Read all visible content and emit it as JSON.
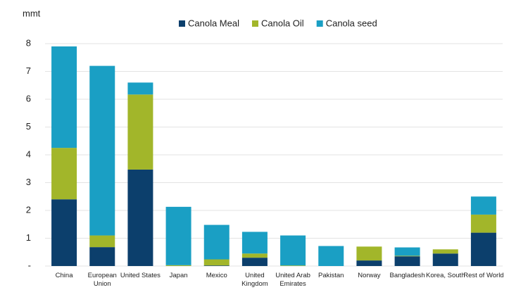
{
  "chart_data": {
    "type": "bar",
    "stacked": true,
    "y_label": "mmt",
    "categories": [
      "China",
      "European Union",
      "United States",
      "Japan",
      "Mexico",
      "United Kingdom",
      "United Arab Emirates",
      "Pakistan",
      "Norway",
      "Bangladesh",
      "Korea, South",
      "Rest of World"
    ],
    "series": [
      {
        "name": "Canola Meal",
        "color": "#0c3f6c",
        "values": [
          2.4,
          0.68,
          3.47,
          0,
          0.02,
          0.3,
          0,
          0,
          0.2,
          0.35,
          0.45,
          1.2
        ]
      },
      {
        "name": "Canola Oil",
        "color": "#a2b62a",
        "values": [
          1.85,
          0.42,
          2.7,
          0.03,
          0.22,
          0.15,
          0.02,
          0,
          0.5,
          0.02,
          0.15,
          0.65
        ]
      },
      {
        "name": "Canola seed",
        "color": "#1a9fc4",
        "values": [
          3.65,
          6.1,
          0.43,
          2.1,
          1.24,
          0.78,
          1.08,
          0.72,
          0,
          0.3,
          0,
          0.65
        ]
      }
    ],
    "ylim": [
      0,
      8
    ],
    "yticks": [
      {
        "value": 0,
        "label": "-"
      },
      1,
      2,
      3,
      4,
      5,
      6,
      7,
      8
    ],
    "grid": true,
    "legend": "top"
  }
}
